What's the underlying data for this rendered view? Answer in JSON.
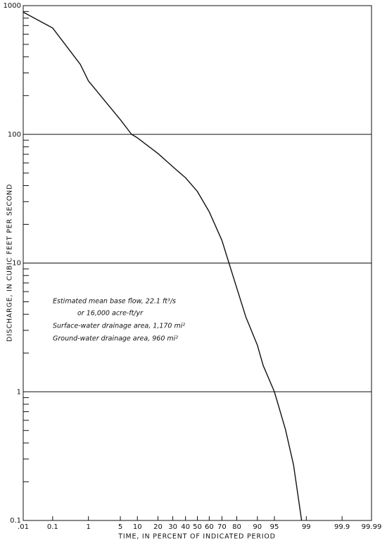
{
  "chart_data": {
    "type": "line",
    "ylabel": "DISCHARGE, IN CUBIC FEET PER SECOND",
    "xlabel": "TIME, IN PERCENT OF INDICATED PERIOD",
    "xscale": "probability",
    "yscale": "log",
    "grid": true,
    "annotations": [
      "Estimated mean base flow, 22.1 ft³/s",
      "or 16,000 acre-ft/yr",
      "Surface-water drainage area, 1,170 mi²",
      "Ground-water drainage area, 960 mi²"
    ],
    "x": [
      0.01,
      0.1,
      0.62,
      1,
      5,
      8,
      10,
      20,
      30,
      40,
      50,
      60,
      70,
      75,
      80,
      85,
      90,
      92,
      95,
      97,
      98,
      98.7
    ],
    "series": [
      {
        "color": "#111111",
        "values": [
          890,
          670,
          350,
          260,
          130,
          100,
          94,
          71,
          56,
          46,
          36,
          25,
          15,
          10,
          6.4,
          3.8,
          2.3,
          1.6,
          1,
          0.51,
          0.27,
          0.1
        ]
      }
    ],
    "xlim": [
      0.01,
      99.99
    ],
    "xticks": [
      {
        "value": 0.01,
        "label": ".01"
      },
      0.1,
      1,
      5,
      10,
      20,
      30,
      40,
      50,
      60,
      70,
      80,
      90,
      95,
      99,
      99.9,
      99.99
    ],
    "ylim": [
      0.1,
      1000
    ],
    "yticks": [
      0.1,
      1,
      10,
      100,
      1000
    ],
    "yminor_ticks": [
      0.2,
      0.3,
      0.4,
      0.5,
      0.6,
      0.7,
      0.8,
      0.9,
      2,
      3,
      4,
      5,
      6,
      7,
      8,
      9,
      20,
      30,
      40,
      50,
      60,
      70,
      80,
      90,
      200,
      300,
      400,
      500,
      600,
      700,
      800,
      900
    ]
  }
}
